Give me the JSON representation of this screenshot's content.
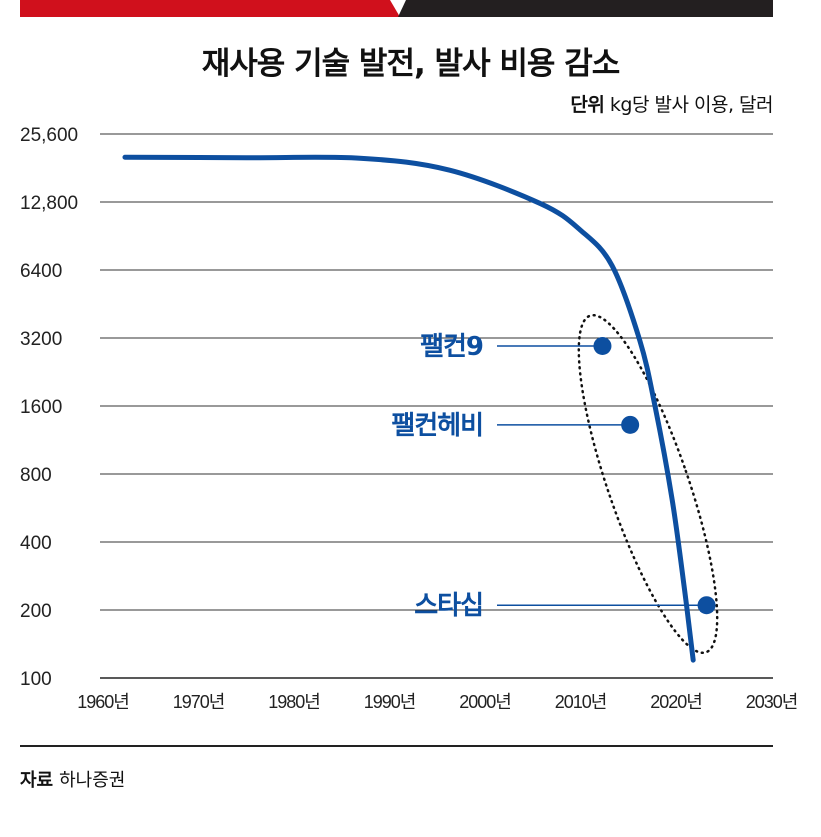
{
  "header": {
    "title": "재사용 기술 발전, 발사 비용 감소",
    "unit_label": "단위",
    "unit_text": "kg당 발사 이용, 달러"
  },
  "colors": {
    "accent_red": "#d0101c",
    "dark_bar": "#231f20",
    "series_blue": "#0d4fa0"
  },
  "chart_data": {
    "type": "line",
    "title": "재사용 기술 발전, 발사 비용 감소",
    "ylabel": "kg당 발사 이용, 달러",
    "y_scale": "log2",
    "ylim": [
      100,
      25600
    ],
    "xlim": [
      1960,
      2030
    ],
    "grid": true,
    "y_ticks": [
      "25,600",
      "12,800",
      "6400",
      "3200",
      "1600",
      "800",
      "400",
      "200",
      "100"
    ],
    "y_tick_values": [
      25600,
      12800,
      6400,
      3200,
      1600,
      800,
      400,
      200,
      100
    ],
    "x_ticks": [
      "1960년",
      "1970년",
      "1980년",
      "1990년",
      "2000년",
      "2010년",
      "2020년",
      "2030년"
    ],
    "x_tick_values": [
      1960,
      1970,
      1980,
      1990,
      2000,
      2010,
      2020,
      2030
    ],
    "trend_line": {
      "x": [
        1962.3,
        1975,
        1986.9,
        1996.3,
        2005.8,
        2010,
        2013.3,
        2016.2,
        2017.8,
        2019.6,
        2020.9,
        2021.8
      ],
      "y": [
        20200,
        20100,
        20000,
        17700,
        12600,
        9600,
        6700,
        3130,
        1600,
        615,
        245,
        120
      ]
    },
    "points": [
      {
        "label": "팰컨9",
        "x": 2012.3,
        "y": 2950
      },
      {
        "label": "팰컨헤비",
        "x": 2015.2,
        "y": 1320
      },
      {
        "label": "스타십",
        "x": 2023.2,
        "y": 210
      }
    ]
  },
  "footer": {
    "source_label": "자료",
    "source_text": "하나증권"
  }
}
